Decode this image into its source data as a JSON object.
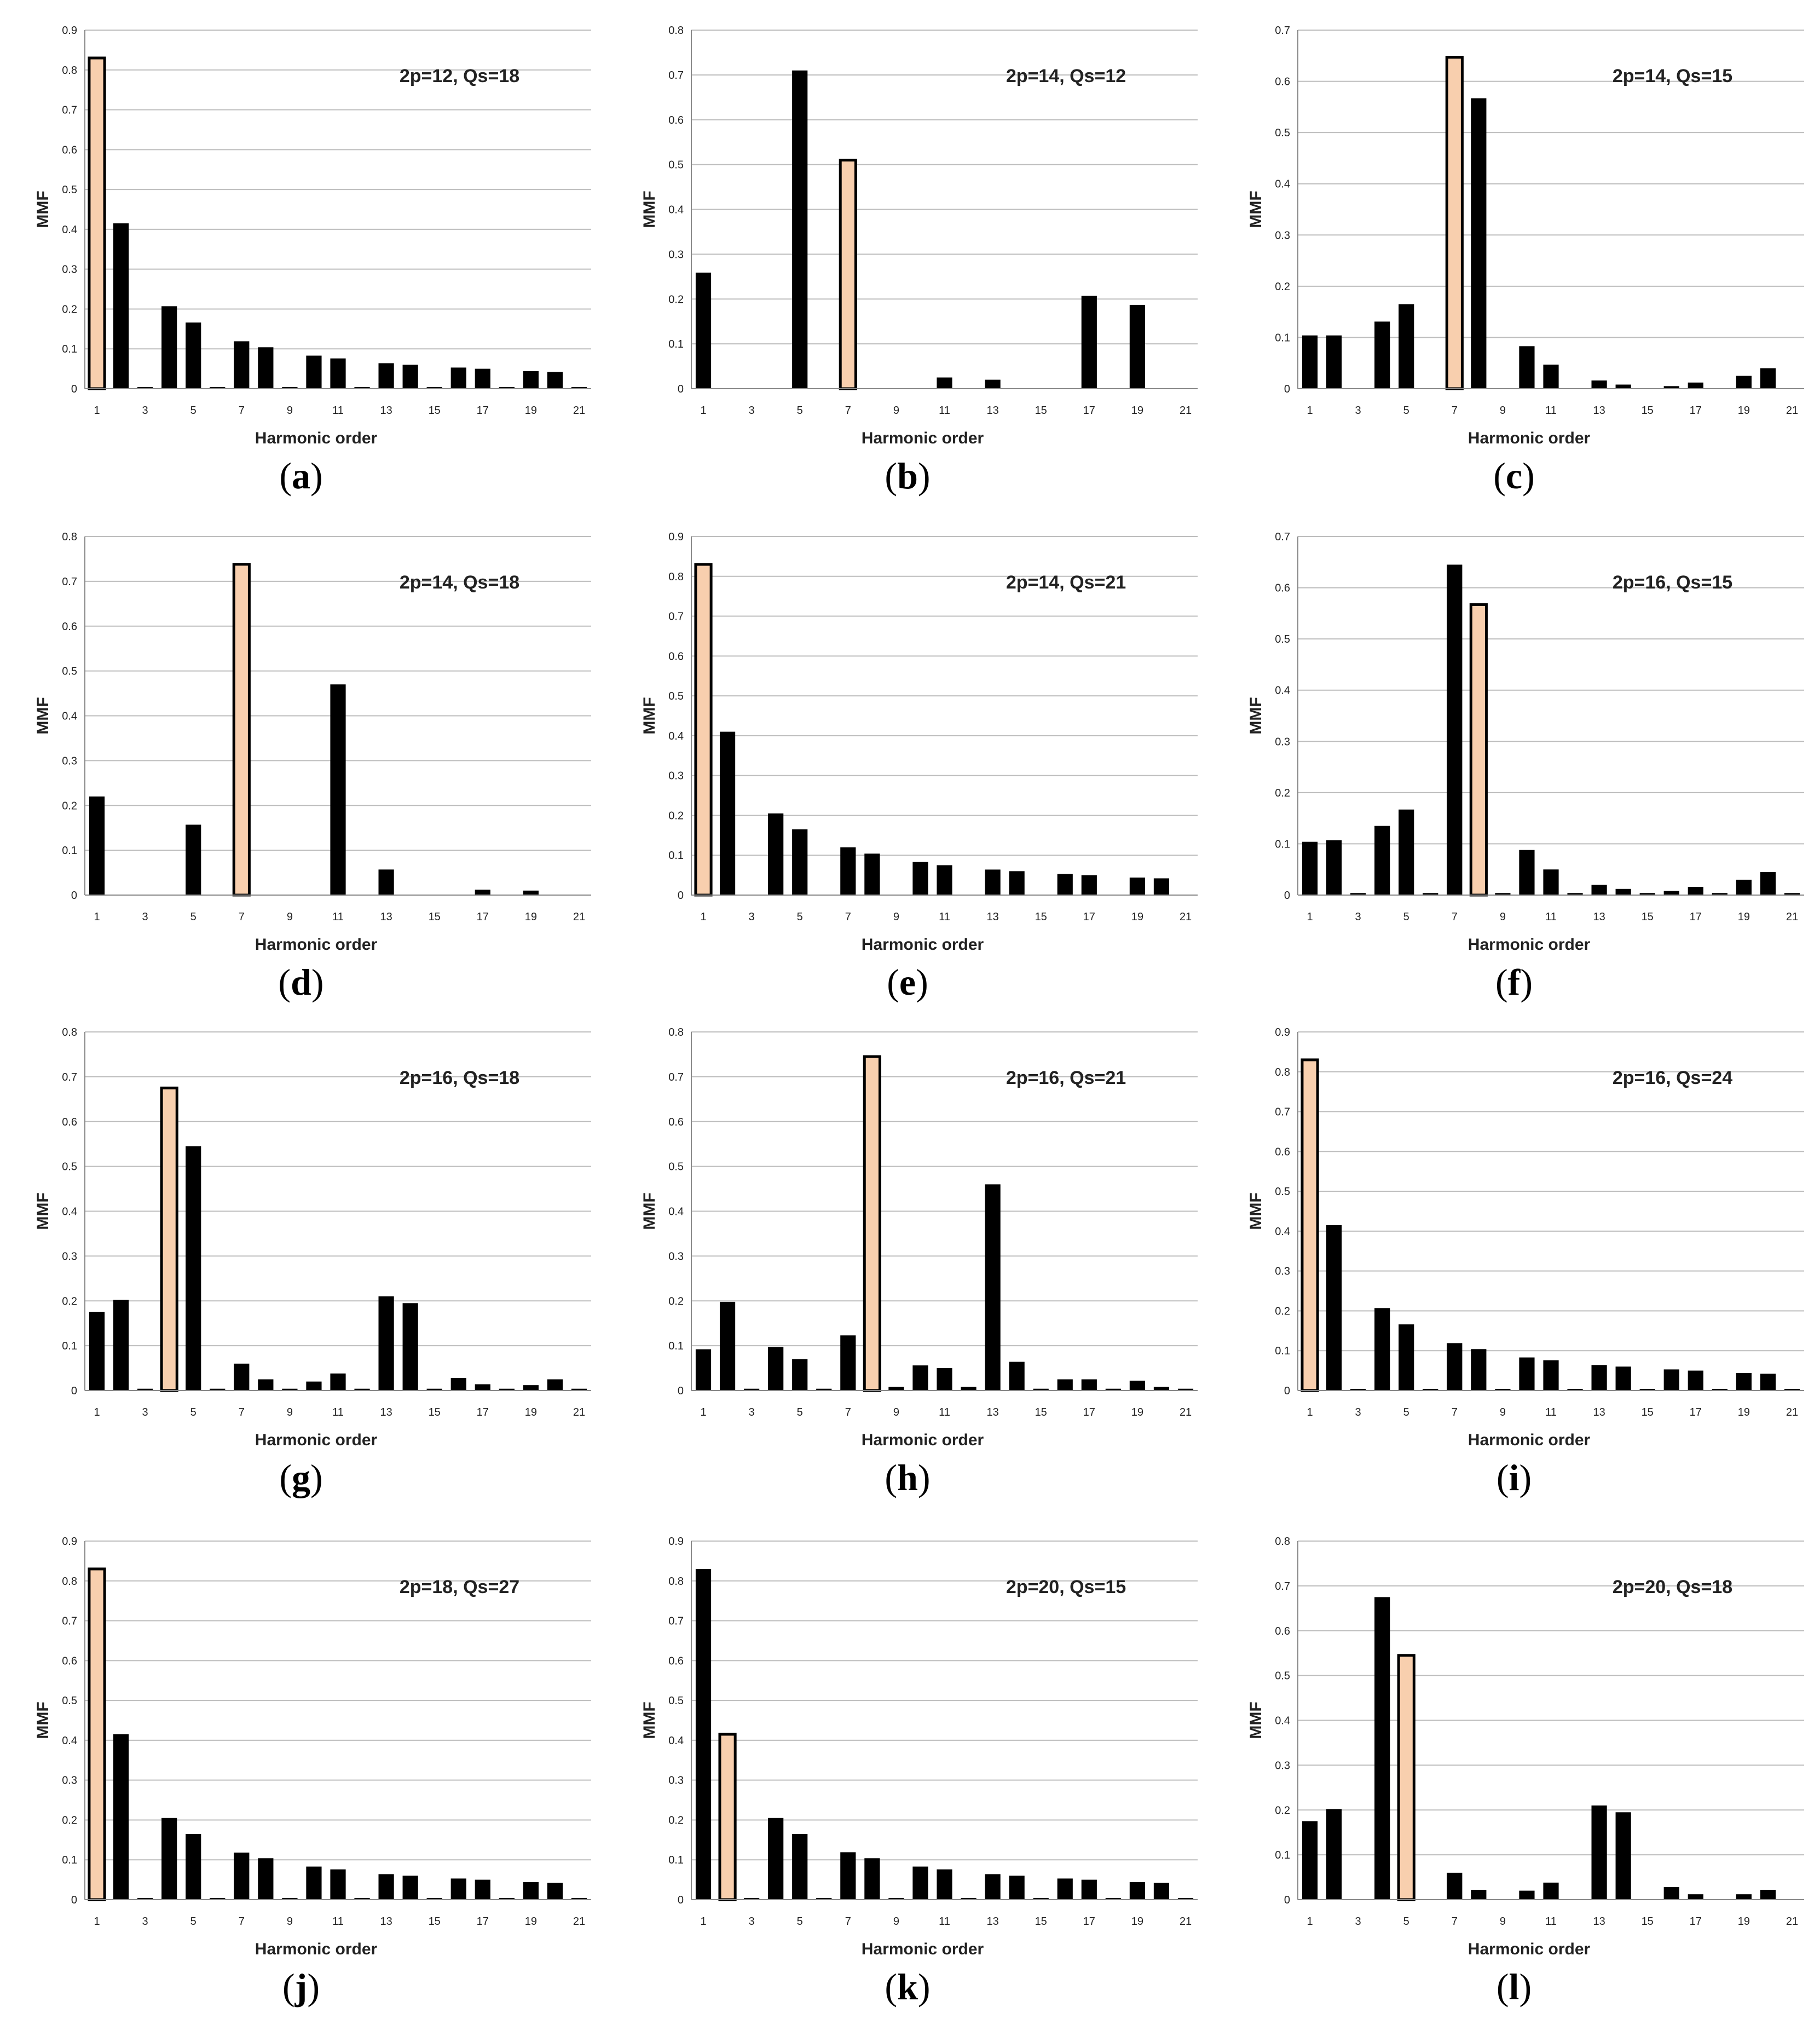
{
  "colors": {
    "black_bar": "#000000",
    "highlight_bar": "#f8cfae",
    "grid": "#bdbdbd"
  },
  "chart_data": [
    {
      "type": "bar",
      "label": "a",
      "annotation": "2p=12, Qs=18",
      "xlabel": "Harmonic order",
      "ylabel": "MMF",
      "ylim": [
        0,
        0.9
      ],
      "ytick_step": 0.1,
      "yticks": [
        "0",
        "0.1",
        "0.2",
        "0.3",
        "0.4",
        "0.5",
        "0.6",
        "0.7",
        "0.8",
        "0.9"
      ],
      "xtick_labels": [
        "1",
        "3",
        "5",
        "7",
        "9",
        "11",
        "13",
        "15",
        "17",
        "19",
        "21"
      ],
      "x": [
        1,
        2,
        3,
        4,
        5,
        6,
        7,
        8,
        9,
        10,
        11,
        12,
        13,
        14,
        15,
        16,
        17,
        18,
        19,
        20,
        21
      ],
      "values": [
        0.83,
        0.415,
        0.004,
        0.207,
        0.166,
        0.004,
        0.119,
        0.104,
        0.004,
        0.083,
        0.076,
        0.004,
        0.064,
        0.06,
        0.004,
        0.053,
        0.05,
        0.004,
        0.044,
        0.042,
        0.004
      ],
      "highlight_x": [
        1
      ]
    },
    {
      "type": "bar",
      "label": "b",
      "annotation": "2p=14, Qs=12",
      "xlabel": "Harmonic order",
      "ylabel": "MMF",
      "ylim": [
        0,
        0.8
      ],
      "ytick_step": 0.1,
      "yticks": [
        "0",
        "0.1",
        "0.2",
        "0.3",
        "0.4",
        "0.5",
        "0.6",
        "0.7",
        "0.8"
      ],
      "xtick_labels": [
        "1",
        "3",
        "5",
        "7",
        "9",
        "11",
        "13",
        "15",
        "17",
        "19",
        "21"
      ],
      "x": [
        1,
        2,
        3,
        4,
        5,
        6,
        7,
        8,
        9,
        10,
        11,
        12,
        13,
        14,
        15,
        16,
        17,
        18,
        19,
        20,
        21
      ],
      "values": [
        0.259,
        0,
        0,
        0,
        0.71,
        0,
        0.51,
        0,
        0,
        0,
        0.025,
        0,
        0.02,
        0,
        0,
        0,
        0.207,
        0,
        0.187,
        0,
        0
      ],
      "highlight_x": [
        7
      ]
    },
    {
      "type": "bar",
      "label": "c",
      "annotation": "2p=14, Qs=15",
      "xlabel": "Harmonic order",
      "ylabel": "MMF",
      "ylim": [
        0,
        0.7
      ],
      "ytick_step": 0.1,
      "yticks": [
        "0",
        "0.1",
        "0.2",
        "0.3",
        "0.4",
        "0.5",
        "0.6",
        "0.7"
      ],
      "xtick_labels": [
        "1",
        "3",
        "5",
        "7",
        "9",
        "11",
        "13",
        "15",
        "17",
        "19",
        "21"
      ],
      "x": [
        1,
        2,
        3,
        4,
        5,
        6,
        7,
        8,
        9,
        10,
        11,
        12,
        13,
        14,
        15,
        16,
        17,
        18,
        19,
        20,
        21
      ],
      "values": [
        0.104,
        0.104,
        0,
        0.131,
        0.165,
        0,
        0.647,
        0.567,
        0,
        0.083,
        0.047,
        0,
        0.016,
        0.008,
        0,
        0.005,
        0.012,
        0,
        0.025,
        0.04,
        0
      ],
      "highlight_x": [
        7
      ]
    },
    {
      "type": "bar",
      "label": "d",
      "annotation": "2p=14, Qs=18",
      "xlabel": "Harmonic order",
      "ylabel": "MMF",
      "ylim": [
        0,
        0.8
      ],
      "ytick_step": 0.1,
      "yticks": [
        "0",
        "0.1",
        "0.2",
        "0.3",
        "0.4",
        "0.5",
        "0.6",
        "0.7",
        "0.8"
      ],
      "xtick_labels": [
        "1",
        "3",
        "5",
        "7",
        "9",
        "11",
        "13",
        "15",
        "17",
        "19",
        "21"
      ],
      "x": [
        1,
        2,
        3,
        4,
        5,
        6,
        7,
        8,
        9,
        10,
        11,
        12,
        13,
        14,
        15,
        16,
        17,
        18,
        19,
        20,
        21
      ],
      "values": [
        0.22,
        0,
        0,
        0,
        0.157,
        0,
        0.738,
        0,
        0,
        0,
        0.47,
        0,
        0.057,
        0,
        0,
        0,
        0.012,
        0,
        0.01,
        0,
        0
      ],
      "highlight_x": [
        7
      ]
    },
    {
      "type": "bar",
      "label": "e",
      "annotation": "2p=14, Qs=21",
      "xlabel": "Harmonic order",
      "ylabel": "MMF",
      "ylim": [
        0,
        0.9
      ],
      "ytick_step": 0.1,
      "yticks": [
        "0",
        "0.1",
        "0.2",
        "0.3",
        "0.4",
        "0.5",
        "0.6",
        "0.7",
        "0.8",
        "0.9"
      ],
      "xtick_labels": [
        "1",
        "3",
        "5",
        "7",
        "9",
        "11",
        "13",
        "15",
        "17",
        "19",
        "21"
      ],
      "x": [
        1,
        2,
        3,
        4,
        5,
        6,
        7,
        8,
        9,
        10,
        11,
        12,
        13,
        14,
        15,
        16,
        17,
        18,
        19,
        20,
        21
      ],
      "values": [
        0.83,
        0.41,
        0,
        0.205,
        0.165,
        0,
        0.12,
        0.104,
        0,
        0.083,
        0.075,
        0,
        0.064,
        0.06,
        0,
        0.053,
        0.05,
        0,
        0.044,
        0.042,
        0
      ],
      "highlight_x": [
        1
      ]
    },
    {
      "type": "bar",
      "label": "f",
      "annotation": "2p=16, Qs=15",
      "xlabel": "Harmonic order",
      "ylabel": "MMF",
      "ylim": [
        0,
        0.7
      ],
      "ytick_step": 0.1,
      "yticks": [
        "0",
        "0.1",
        "0.2",
        "0.3",
        "0.4",
        "0.5",
        "0.6",
        "0.7"
      ],
      "xtick_labels": [
        "1",
        "3",
        "5",
        "7",
        "9",
        "11",
        "13",
        "15",
        "17",
        "19",
        "21"
      ],
      "x": [
        1,
        2,
        3,
        4,
        5,
        6,
        7,
        8,
        9,
        10,
        11,
        12,
        13,
        14,
        15,
        16,
        17,
        18,
        19,
        20,
        21
      ],
      "values": [
        0.104,
        0.107,
        0.004,
        0.135,
        0.167,
        0.004,
        0.645,
        0.567,
        0.004,
        0.088,
        0.05,
        0.004,
        0.02,
        0.012,
        0.004,
        0.008,
        0.016,
        0.004,
        0.03,
        0.045,
        0.004
      ],
      "highlight_x": [
        8
      ]
    },
    {
      "type": "bar",
      "label": "g",
      "annotation": "2p=16, Qs=18",
      "xlabel": "Harmonic order",
      "ylabel": "MMF",
      "ylim": [
        0,
        0.8
      ],
      "ytick_step": 0.1,
      "yticks": [
        "0",
        "0.1",
        "0.2",
        "0.3",
        "0.4",
        "0.5",
        "0.6",
        "0.7",
        "0.8"
      ],
      "xtick_labels": [
        "1",
        "3",
        "5",
        "7",
        "9",
        "11",
        "13",
        "15",
        "17",
        "19",
        "21"
      ],
      "x": [
        1,
        2,
        3,
        4,
        5,
        6,
        7,
        8,
        9,
        10,
        11,
        12,
        13,
        14,
        15,
        16,
        17,
        18,
        19,
        20,
        21
      ],
      "values": [
        0.175,
        0.202,
        0.004,
        0.675,
        0.545,
        0.004,
        0.06,
        0.025,
        0.004,
        0.02,
        0.038,
        0.004,
        0.21,
        0.195,
        0.004,
        0.028,
        0.014,
        0.004,
        0.012,
        0.025,
        0.004
      ],
      "highlight_x": [
        4
      ]
    },
    {
      "type": "bar",
      "label": "h",
      "annotation": "2p=16, Qs=21",
      "xlabel": "Harmonic order",
      "ylabel": "MMF",
      "ylim": [
        0,
        0.8
      ],
      "ytick_step": 0.1,
      "yticks": [
        "0",
        "0.1",
        "0.2",
        "0.3",
        "0.4",
        "0.5",
        "0.6",
        "0.7",
        "0.8"
      ],
      "xtick_labels": [
        "1",
        "3",
        "5",
        "7",
        "9",
        "11",
        "13",
        "15",
        "17",
        "19",
        "21"
      ],
      "x": [
        1,
        2,
        3,
        4,
        5,
        6,
        7,
        8,
        9,
        10,
        11,
        12,
        13,
        14,
        15,
        16,
        17,
        18,
        19,
        20,
        21
      ],
      "values": [
        0.092,
        0.198,
        0.004,
        0.097,
        0.07,
        0.004,
        0.123,
        0.745,
        0.008,
        0.056,
        0.05,
        0.008,
        0.46,
        0.064,
        0.004,
        0.025,
        0.025,
        0.004,
        0.022,
        0.008,
        0.004
      ],
      "highlight_x": [
        8
      ]
    },
    {
      "type": "bar",
      "label": "i",
      "annotation": "2p=16, Qs=24",
      "xlabel": "Harmonic order",
      "ylabel": "MMF",
      "ylim": [
        0,
        0.9
      ],
      "ytick_step": 0.1,
      "yticks": [
        "0",
        "0.1",
        "0.2",
        "0.3",
        "0.4",
        "0.5",
        "0.6",
        "0.7",
        "0.8",
        "0.9"
      ],
      "xtick_labels": [
        "1",
        "3",
        "5",
        "7",
        "9",
        "11",
        "13",
        "15",
        "17",
        "19",
        "21"
      ],
      "x": [
        1,
        2,
        3,
        4,
        5,
        6,
        7,
        8,
        9,
        10,
        11,
        12,
        13,
        14,
        15,
        16,
        17,
        18,
        19,
        20,
        21
      ],
      "values": [
        0.83,
        0.415,
        0.004,
        0.207,
        0.166,
        0.004,
        0.119,
        0.104,
        0.004,
        0.083,
        0.076,
        0.004,
        0.064,
        0.06,
        0.004,
        0.053,
        0.05,
        0.004,
        0.044,
        0.042,
        0.004
      ],
      "highlight_x": [
        1
      ]
    },
    {
      "type": "bar",
      "label": "j",
      "annotation": "2p=18, Qs=27",
      "xlabel": "Harmonic order",
      "ylabel": "MMF",
      "ylim": [
        0,
        0.9
      ],
      "ytick_step": 0.1,
      "yticks": [
        "0",
        "0.1",
        "0.2",
        "0.3",
        "0.4",
        "0.5",
        "0.6",
        "0.7",
        "0.8",
        "0.9"
      ],
      "xtick_labels": [
        "1",
        "3",
        "5",
        "7",
        "9",
        "11",
        "13",
        "15",
        "17",
        "19",
        "21"
      ],
      "x": [
        1,
        2,
        3,
        4,
        5,
        6,
        7,
        8,
        9,
        10,
        11,
        12,
        13,
        14,
        15,
        16,
        17,
        18,
        19,
        20,
        21
      ],
      "values": [
        0.83,
        0.415,
        0.004,
        0.205,
        0.165,
        0.004,
        0.118,
        0.104,
        0.004,
        0.083,
        0.076,
        0.004,
        0.064,
        0.06,
        0.004,
        0.053,
        0.05,
        0.004,
        0.044,
        0.042,
        0.004
      ],
      "highlight_x": [
        1
      ]
    },
    {
      "type": "bar",
      "label": "k",
      "annotation": "2p=20, Qs=15",
      "xlabel": "Harmonic order",
      "ylabel": "MMF",
      "ylim": [
        0,
        0.9
      ],
      "ytick_step": 0.1,
      "yticks": [
        "0",
        "0.1",
        "0.2",
        "0.3",
        "0.4",
        "0.5",
        "0.6",
        "0.7",
        "0.8",
        "0.9"
      ],
      "xtick_labels": [
        "1",
        "3",
        "5",
        "7",
        "9",
        "11",
        "13",
        "15",
        "17",
        "19",
        "21"
      ],
      "x": [
        1,
        2,
        3,
        4,
        5,
        6,
        7,
        8,
        9,
        10,
        11,
        12,
        13,
        14,
        15,
        16,
        17,
        18,
        19,
        20,
        21
      ],
      "values": [
        0.83,
        0.415,
        0.004,
        0.205,
        0.165,
        0.004,
        0.119,
        0.104,
        0.004,
        0.083,
        0.076,
        0.004,
        0.064,
        0.06,
        0.004,
        0.053,
        0.05,
        0.004,
        0.044,
        0.042,
        0.004
      ],
      "highlight_x": [
        2
      ]
    },
    {
      "type": "bar",
      "label": "l",
      "annotation": "2p=20, Qs=18",
      "xlabel": "Harmonic order",
      "ylabel": "MMF",
      "ylim": [
        0,
        0.8
      ],
      "ytick_step": 0.1,
      "yticks": [
        "0",
        "0.1",
        "0.2",
        "0.3",
        "0.4",
        "0.5",
        "0.6",
        "0.7",
        "0.8"
      ],
      "xtick_labels": [
        "1",
        "3",
        "5",
        "7",
        "9",
        "11",
        "13",
        "15",
        "17",
        "19",
        "21"
      ],
      "x": [
        1,
        2,
        3,
        4,
        5,
        6,
        7,
        8,
        9,
        10,
        11,
        12,
        13,
        14,
        15,
        16,
        17,
        18,
        19,
        20,
        21
      ],
      "values": [
        0.175,
        0.202,
        0,
        0.675,
        0.545,
        0,
        0.06,
        0.022,
        0,
        0.02,
        0.038,
        0,
        0.21,
        0.195,
        0,
        0.028,
        0.012,
        0,
        0.012,
        0.022,
        0
      ],
      "highlight_x": [
        5
      ]
    }
  ]
}
